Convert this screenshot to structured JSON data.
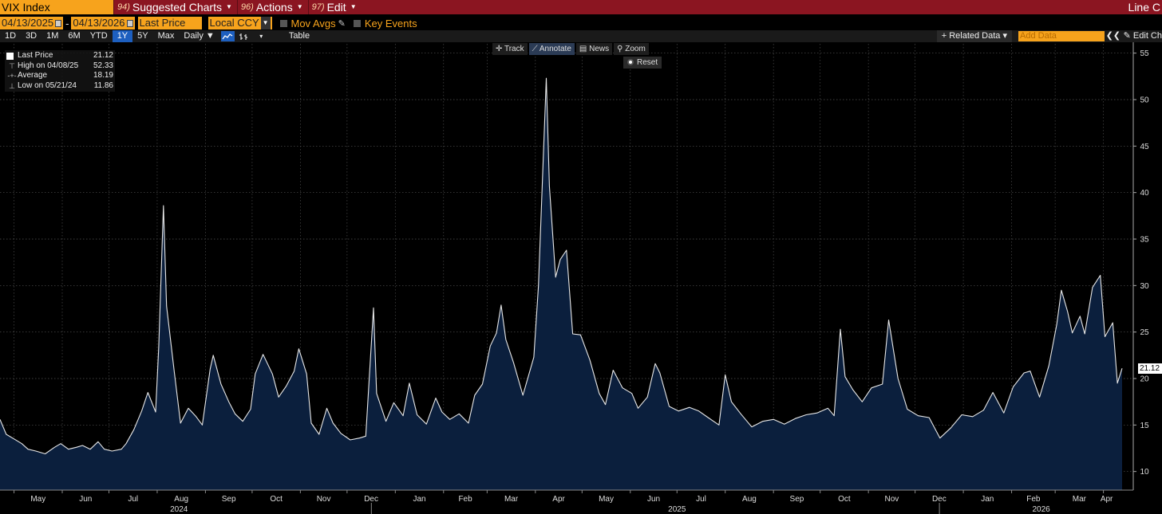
{
  "header": {
    "ticker": "VIX Index",
    "menu": [
      {
        "num": "94)",
        "label": "Suggested Charts"
      },
      {
        "num": "96)",
        "label": "Actions"
      },
      {
        "num": "97)",
        "label": "Edit"
      }
    ],
    "right_label": "Line C"
  },
  "controls": {
    "start_date": "04/13/2025",
    "end_date": "04/13/2026",
    "field": "Last Price",
    "currency": "Local CCY",
    "mov_avgs": "Mov Avgs",
    "key_events": "Key Events"
  },
  "toolbar": {
    "ranges": [
      "1D",
      "3D",
      "1M",
      "6M",
      "YTD",
      "1Y",
      "5Y",
      "Max"
    ],
    "selected_range": "1Y",
    "frequency": "Daily ▼",
    "table": "Table",
    "related_data": "+ Related Data ▾",
    "add_data_placeholder": "Add Data",
    "edit_chart": "Edit Ch"
  },
  "chart_tools": {
    "track": "Track",
    "annotate": "Annotate",
    "news": "News",
    "zoom": "Zoom",
    "reset": "Reset"
  },
  "legend": [
    {
      "label": "Last Price",
      "value": "21.12"
    },
    {
      "label": "High on 04/08/25",
      "value": "52.33"
    },
    {
      "label": "Average",
      "value": "18.19"
    },
    {
      "label": "Low on 05/21/24",
      "value": "11.86"
    }
  ],
  "last_value_label": "21.12",
  "colors": {
    "title_bar": "#8b1521",
    "accent_orange": "#f7a31c",
    "area_fill": "#0b1f3d",
    "line": "#e8e8e8",
    "selected_blue": "#1d5fbf"
  },
  "chart_data": {
    "type": "area",
    "title": "VIX Index",
    "ylim": [
      8,
      56
    ],
    "y_ticks": [
      10,
      15,
      20,
      25,
      30,
      35,
      40,
      45,
      50,
      55
    ],
    "y_axis_side": "right",
    "grid": true,
    "x_start": "2024-04-22",
    "x_end": "2026-04-13",
    "month_labels": [
      {
        "label": "May",
        "date": "2024-05-01"
      },
      {
        "label": "Jun",
        "date": "2024-06-01"
      },
      {
        "label": "Jul",
        "date": "2024-07-01"
      },
      {
        "label": "Aug",
        "date": "2024-08-01"
      },
      {
        "label": "Sep",
        "date": "2024-09-01"
      },
      {
        "label": "Oct",
        "date": "2024-10-01"
      },
      {
        "label": "Nov",
        "date": "2024-11-01"
      },
      {
        "label": "Dec",
        "date": "2024-12-01"
      },
      {
        "label": "Jan",
        "date": "2025-01-01"
      },
      {
        "label": "Feb",
        "date": "2025-02-01"
      },
      {
        "label": "Mar",
        "date": "2025-03-01"
      },
      {
        "label": "Apr",
        "date": "2025-04-01"
      },
      {
        "label": "May",
        "date": "2025-05-01"
      },
      {
        "label": "Jun",
        "date": "2025-06-01"
      },
      {
        "label": "Jul",
        "date": "2025-07-01"
      },
      {
        "label": "Aug",
        "date": "2025-08-01"
      },
      {
        "label": "Sep",
        "date": "2025-09-01"
      },
      {
        "label": "Oct",
        "date": "2025-10-01"
      },
      {
        "label": "Nov",
        "date": "2025-11-01"
      },
      {
        "label": "Dec",
        "date": "2025-12-01"
      },
      {
        "label": "Jan",
        "date": "2026-01-01"
      },
      {
        "label": "Feb",
        "date": "2026-02-01"
      },
      {
        "label": "Mar",
        "date": "2026-03-01"
      },
      {
        "label": "Apr",
        "date": "2026-04-01"
      }
    ],
    "year_labels": [
      {
        "label": "2024",
        "date": "2024-08-15"
      },
      {
        "label": "2025",
        "date": "2025-07-01"
      },
      {
        "label": "2026",
        "date": "2026-02-20"
      }
    ],
    "year_separators": [
      "2025-01-01",
      "2026-01-01"
    ],
    "series": [
      {
        "x": [
          "2024-04-22",
          "2024-04-26",
          "2024-05-01",
          "2024-05-06",
          "2024-05-10",
          "2024-05-15",
          "2024-05-21",
          "2024-05-27",
          "2024-05-31",
          "2024-06-05",
          "2024-06-10",
          "2024-06-14",
          "2024-06-19",
          "2024-06-24",
          "2024-06-28",
          "2024-07-03",
          "2024-07-09",
          "2024-07-12",
          "2024-07-17",
          "2024-07-22",
          "2024-07-26",
          "2024-07-31",
          "2024-08-02",
          "2024-08-05",
          "2024-08-07",
          "2024-08-12",
          "2024-08-16",
          "2024-08-21",
          "2024-08-26",
          "2024-08-30",
          "2024-09-04",
          "2024-09-06",
          "2024-09-11",
          "2024-09-16",
          "2024-09-20",
          "2024-09-25",
          "2024-09-30",
          "2024-10-03",
          "2024-10-08",
          "2024-10-14",
          "2024-10-18",
          "2024-10-23",
          "2024-10-28",
          "2024-10-31",
          "2024-11-05",
          "2024-11-08",
          "2024-11-13",
          "2024-11-18",
          "2024-11-22",
          "2024-11-27",
          "2024-12-03",
          "2024-12-09",
          "2024-12-13",
          "2024-12-18",
          "2024-12-20",
          "2024-12-26",
          "2024-12-31",
          "2025-01-06",
          "2025-01-10",
          "2025-01-15",
          "2025-01-21",
          "2025-01-27",
          "2025-01-31",
          "2025-02-05",
          "2025-02-11",
          "2025-02-17",
          "2025-02-21",
          "2025-02-26",
          "2025-03-03",
          "2025-03-07",
          "2025-03-10",
          "2025-03-13",
          "2025-03-18",
          "2025-03-24",
          "2025-03-31",
          "2025-04-03",
          "2025-04-08",
          "2025-04-10",
          "2025-04-14",
          "2025-04-17",
          "2025-04-21",
          "2025-04-25",
          "2025-04-30",
          "2025-05-06",
          "2025-05-12",
          "2025-05-16",
          "2025-05-21",
          "2025-05-27",
          "2025-06-02",
          "2025-06-06",
          "2025-06-12",
          "2025-06-17",
          "2025-06-20",
          "2025-06-26",
          "2025-07-02",
          "2025-07-09",
          "2025-07-15",
          "2025-07-21",
          "2025-07-28",
          "2025-08-01",
          "2025-08-05",
          "2025-08-11",
          "2025-08-18",
          "2025-08-25",
          "2025-09-01",
          "2025-09-08",
          "2025-09-15",
          "2025-09-22",
          "2025-09-29",
          "2025-10-06",
          "2025-10-10",
          "2025-10-14",
          "2025-10-17",
          "2025-10-22",
          "2025-10-28",
          "2025-11-03",
          "2025-11-10",
          "2025-11-14",
          "2025-11-20",
          "2025-11-26",
          "2025-12-03",
          "2025-12-10",
          "2025-12-17",
          "2025-12-24",
          "2025-12-31",
          "2026-01-07",
          "2026-01-14",
          "2026-01-20",
          "2026-01-27",
          "2026-02-02",
          "2026-02-09",
          "2026-02-13",
          "2026-02-19",
          "2026-02-25",
          "2026-03-02",
          "2026-03-05",
          "2026-03-09",
          "2026-03-12",
          "2026-03-17",
          "2026-03-20",
          "2026-03-25",
          "2026-03-30",
          "2026-04-02",
          "2026-04-07",
          "2026-04-10",
          "2026-04-13"
        ],
        "y": [
          15.6,
          14.0,
          13.5,
          13.0,
          12.4,
          12.2,
          11.9,
          12.6,
          13.0,
          12.4,
          12.6,
          12.8,
          12.4,
          13.2,
          12.4,
          12.2,
          12.4,
          13.0,
          14.5,
          16.5,
          18.5,
          16.4,
          23.4,
          38.6,
          27.8,
          20.7,
          15.2,
          16.8,
          15.9,
          15.0,
          21.0,
          22.5,
          19.4,
          17.5,
          16.2,
          15.4,
          16.7,
          20.5,
          22.6,
          20.5,
          18.0,
          19.2,
          20.8,
          23.2,
          20.5,
          15.2,
          14.0,
          16.8,
          15.2,
          14.1,
          13.4,
          13.6,
          13.8,
          27.6,
          18.4,
          15.4,
          17.4,
          16.0,
          19.5,
          16.1,
          15.1,
          17.9,
          16.4,
          15.6,
          16.2,
          15.2,
          18.2,
          19.4,
          23.5,
          24.9,
          27.9,
          24.2,
          21.7,
          18.2,
          22.3,
          30.0,
          52.3,
          40.7,
          30.9,
          32.8,
          33.8,
          24.8,
          24.7,
          22.0,
          18.4,
          17.2,
          20.9,
          19.0,
          18.4,
          16.8,
          18.0,
          21.6,
          20.6,
          17.0,
          16.5,
          16.9,
          16.5,
          15.8,
          15.0,
          20.4,
          17.5,
          16.2,
          14.8,
          15.4,
          15.6,
          15.1,
          15.7,
          16.1,
          16.3,
          16.8,
          16.0,
          25.3,
          20.2,
          18.8,
          17.5,
          19.0,
          19.4,
          26.3,
          20.0,
          16.7,
          16.0,
          15.8,
          13.6,
          14.7,
          16.1,
          15.9,
          16.6,
          18.5,
          16.3,
          19.1,
          20.6,
          20.8,
          18.0,
          21.4,
          25.8,
          29.5,
          27.2,
          24.9,
          26.7,
          24.8,
          29.8,
          31.1,
          24.5,
          26.0,
          19.5,
          21.1
        ]
      }
    ]
  }
}
